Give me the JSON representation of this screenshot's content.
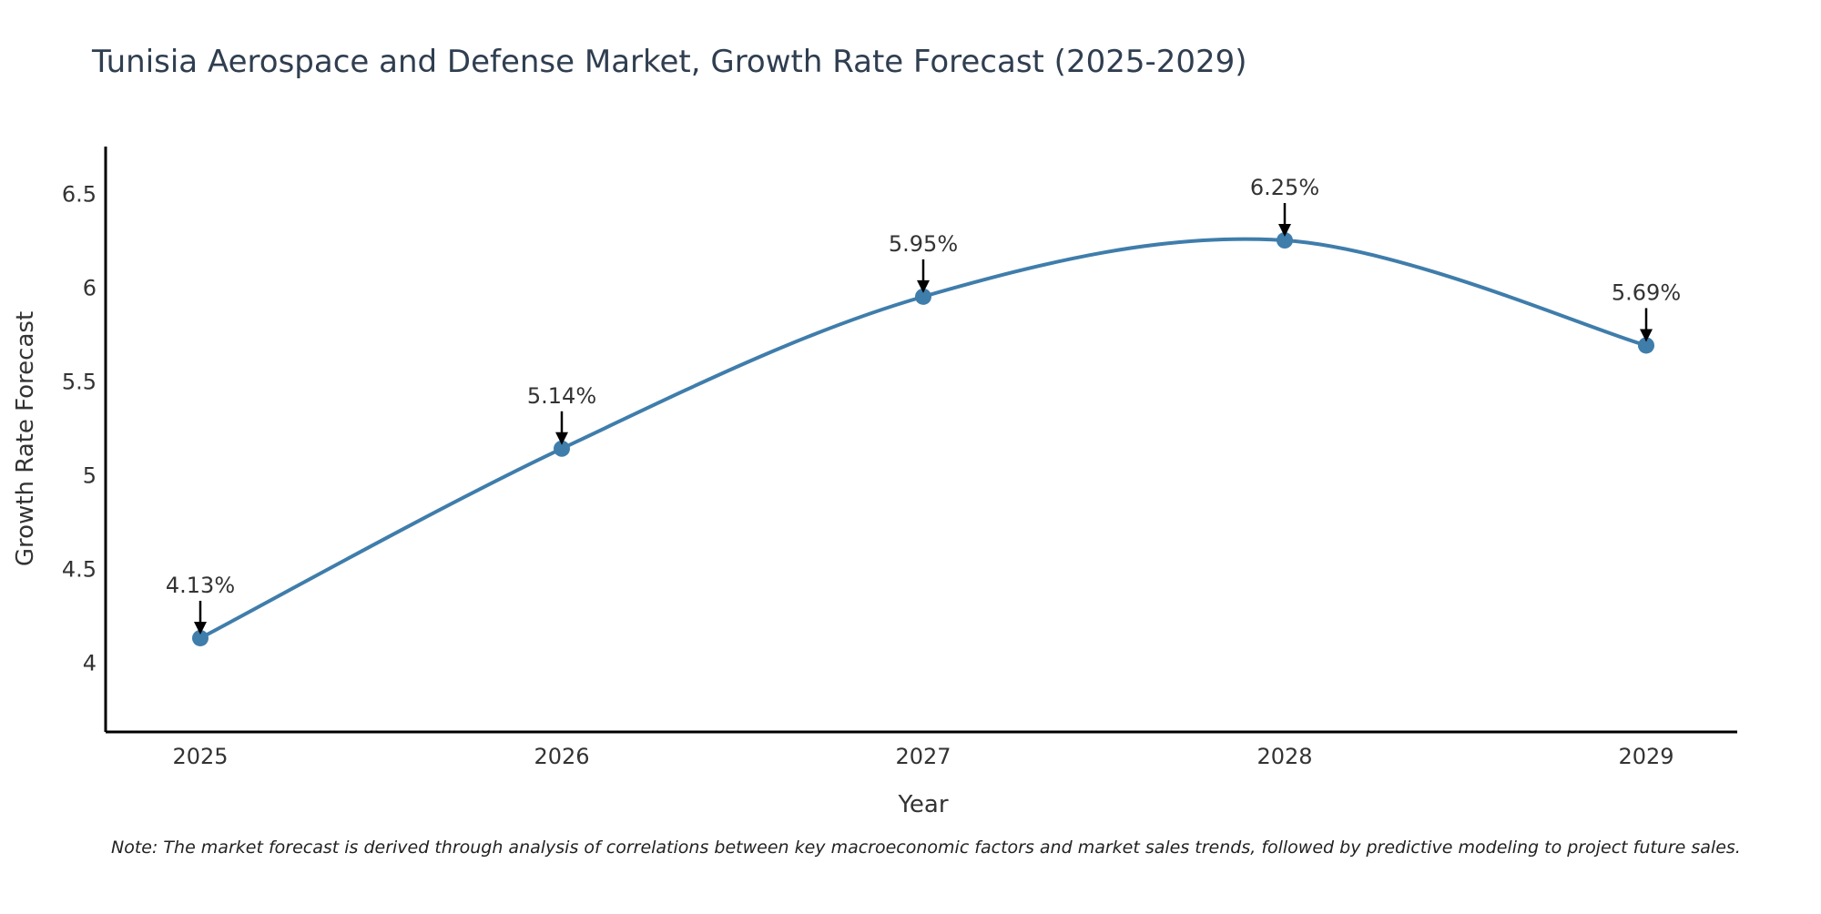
{
  "chart_data": {
    "type": "line",
    "title": "Tunisia Aerospace and Defense Market, Growth Rate Forecast (2025-2029)",
    "xlabel": "Year",
    "ylabel": "Growth Rate Forecast",
    "categories": [
      "2025",
      "2026",
      "2027",
      "2028",
      "2029"
    ],
    "series": [
      {
        "name": "Growth Rate Forecast",
        "values": [
          4.13,
          5.14,
          5.95,
          6.25,
          5.69
        ]
      }
    ],
    "data_labels": [
      "4.13%",
      "5.14%",
      "5.95%",
      "6.25%",
      "5.69%"
    ],
    "yticks": [
      4,
      4.5,
      5,
      5.5,
      6,
      6.5
    ],
    "ytick_labels": [
      "4",
      "4.5",
      "5",
      "5.5",
      "6",
      "6.5"
    ],
    "ylim": [
      3.63,
      6.75
    ],
    "grid": false,
    "legend": "none",
    "line_color": "#3f7dab",
    "note": "Note: The market forecast is derived through analysis of correlations between key macroeconomic factors and market sales trends, followed by predictive modeling to project future sales."
  }
}
